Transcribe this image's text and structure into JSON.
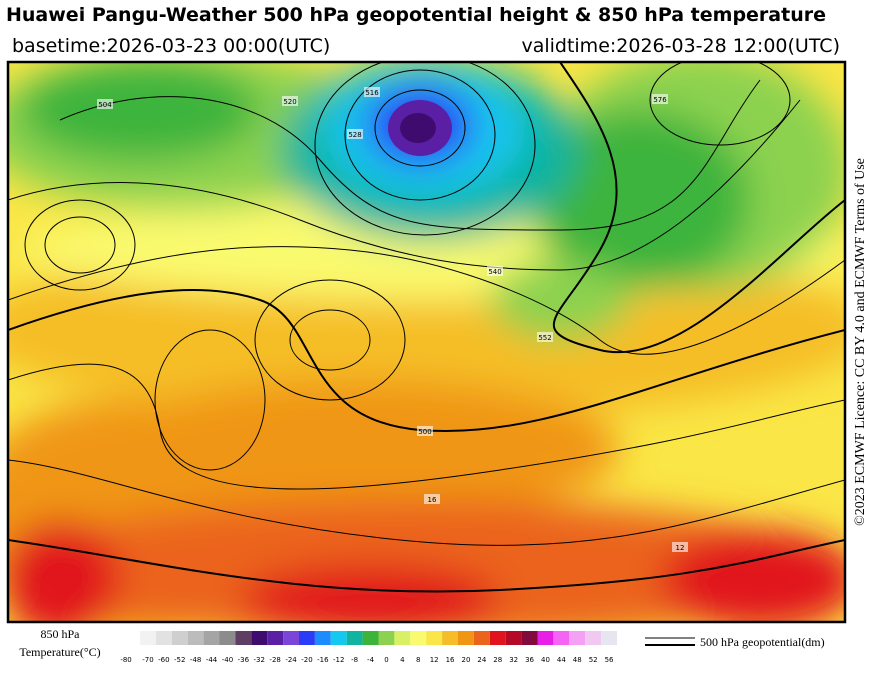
{
  "header": {
    "title": "Huawei Pangu-Weather 500 hPa geopotential height & 850 hPa temperature",
    "basetime": "basetime:2026-03-23 00:00(UTC)",
    "validtime": "validtime:2026-03-28 12:00(UTC)"
  },
  "licence": "©2023 ECMWF Licence: CC BY 4.0 and ECMWF Terms of Use",
  "legend": {
    "temperature_label": [
      "850 hPa",
      "Temperature(°C)"
    ],
    "ticks": [
      -80,
      -70,
      -60,
      -52,
      -48,
      -44,
      -40,
      -36,
      -32,
      -28,
      -24,
      -20,
      -16,
      -12,
      -8,
      -4,
      0,
      4,
      8,
      12,
      16,
      20,
      24,
      28,
      32,
      36,
      40,
      44,
      48,
      52,
      56
    ],
    "colors": [
      "#f2f2f2",
      "#e2e2e2",
      "#cfcfcf",
      "#bcbcbc",
      "#a5a5a5",
      "#8c8c8c",
      "#5e3f63",
      "#3f0b6e",
      "#5a1fa5",
      "#7b45d8",
      "#2a3cf5",
      "#1e8cff",
      "#14c8f0",
      "#10b4a0",
      "#3cb43c",
      "#8cd250",
      "#d8f064",
      "#fafa6e",
      "#fae646",
      "#f5be28",
      "#f09614",
      "#eb641e",
      "#e1141e",
      "#b40a28",
      "#820a3c",
      "#e61ee6",
      "#f564f5",
      "#f5a0f5",
      "#f0c8f0",
      "#e6e6f0"
    ],
    "contour_label": "500 hPa geopotential(dm)"
  },
  "map": {
    "contour_labels": [
      "504",
      "520",
      "516",
      "528",
      "552",
      "540",
      "576",
      "500",
      "16",
      "12"
    ]
  }
}
